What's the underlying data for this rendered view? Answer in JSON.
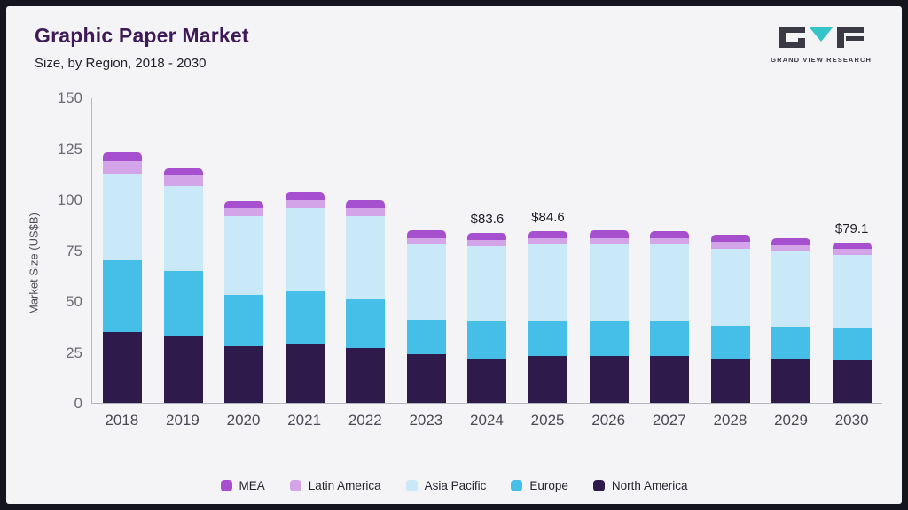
{
  "header": {
    "title": "Graphic Paper Market",
    "subtitle": "Size, by Region, 2018 - 2030",
    "logo_text": "GRAND VIEW RESEARCH"
  },
  "colors": {
    "frame_border": "#15151f",
    "page_background": "#f4f3f6",
    "title": "#3e1b56",
    "logo_teal": "#35c4c8",
    "logo_dark": "#3a3a44"
  },
  "chart_data": {
    "type": "bar",
    "stacked": true,
    "title": "Graphic Paper Market",
    "subtitle": "Size, by Region, 2018 - 2030",
    "xlabel": "",
    "ylabel": "Market Size (US$B)",
    "ylim": [
      0,
      150
    ],
    "yticks": [
      0,
      25,
      50,
      75,
      100,
      125,
      150
    ],
    "grid": false,
    "legend_position": "bottom",
    "categories": [
      "2018",
      "2019",
      "2020",
      "2021",
      "2022",
      "2023",
      "2024",
      "2025",
      "2026",
      "2027",
      "2028",
      "2029",
      "2030"
    ],
    "series": [
      {
        "name": "North America",
        "color": "#2f1b4b",
        "values": [
          35,
          33,
          28,
          29,
          27,
          24,
          22,
          23,
          23,
          23,
          22,
          21.5,
          21
        ]
      },
      {
        "name": "Europe",
        "color": "#45bfe8",
        "values": [
          35,
          32,
          25,
          26,
          24,
          17,
          18,
          17,
          17,
          17,
          16,
          16,
          15.5
        ]
      },
      {
        "name": "Asia Pacific",
        "color": "#c9e9f8",
        "values": [
          43,
          42,
          39,
          41,
          41,
          37,
          37,
          38,
          38,
          38,
          38,
          37,
          36.5
        ]
      },
      {
        "name": "Latin America",
        "color": "#d3a4e8",
        "values": [
          6,
          5,
          4,
          4,
          4,
          3,
          3.1,
          3.1,
          3,
          3,
          3.5,
          3,
          2.8
        ]
      },
      {
        "name": "MEA",
        "color": "#a64fcf",
        "values": [
          4.5,
          3.5,
          3.5,
          4,
          4,
          4,
          3.5,
          3.5,
          4,
          3.5,
          3.5,
          3.5,
          3.3
        ]
      }
    ],
    "annotations": [
      {
        "category": "2024",
        "text": "$83.6"
      },
      {
        "category": "2025",
        "text": "$84.6"
      },
      {
        "category": "2030",
        "text": "$79.1"
      }
    ],
    "legend": [
      "MEA",
      "Latin America",
      "Asia Pacific",
      "Europe",
      "North America"
    ]
  }
}
